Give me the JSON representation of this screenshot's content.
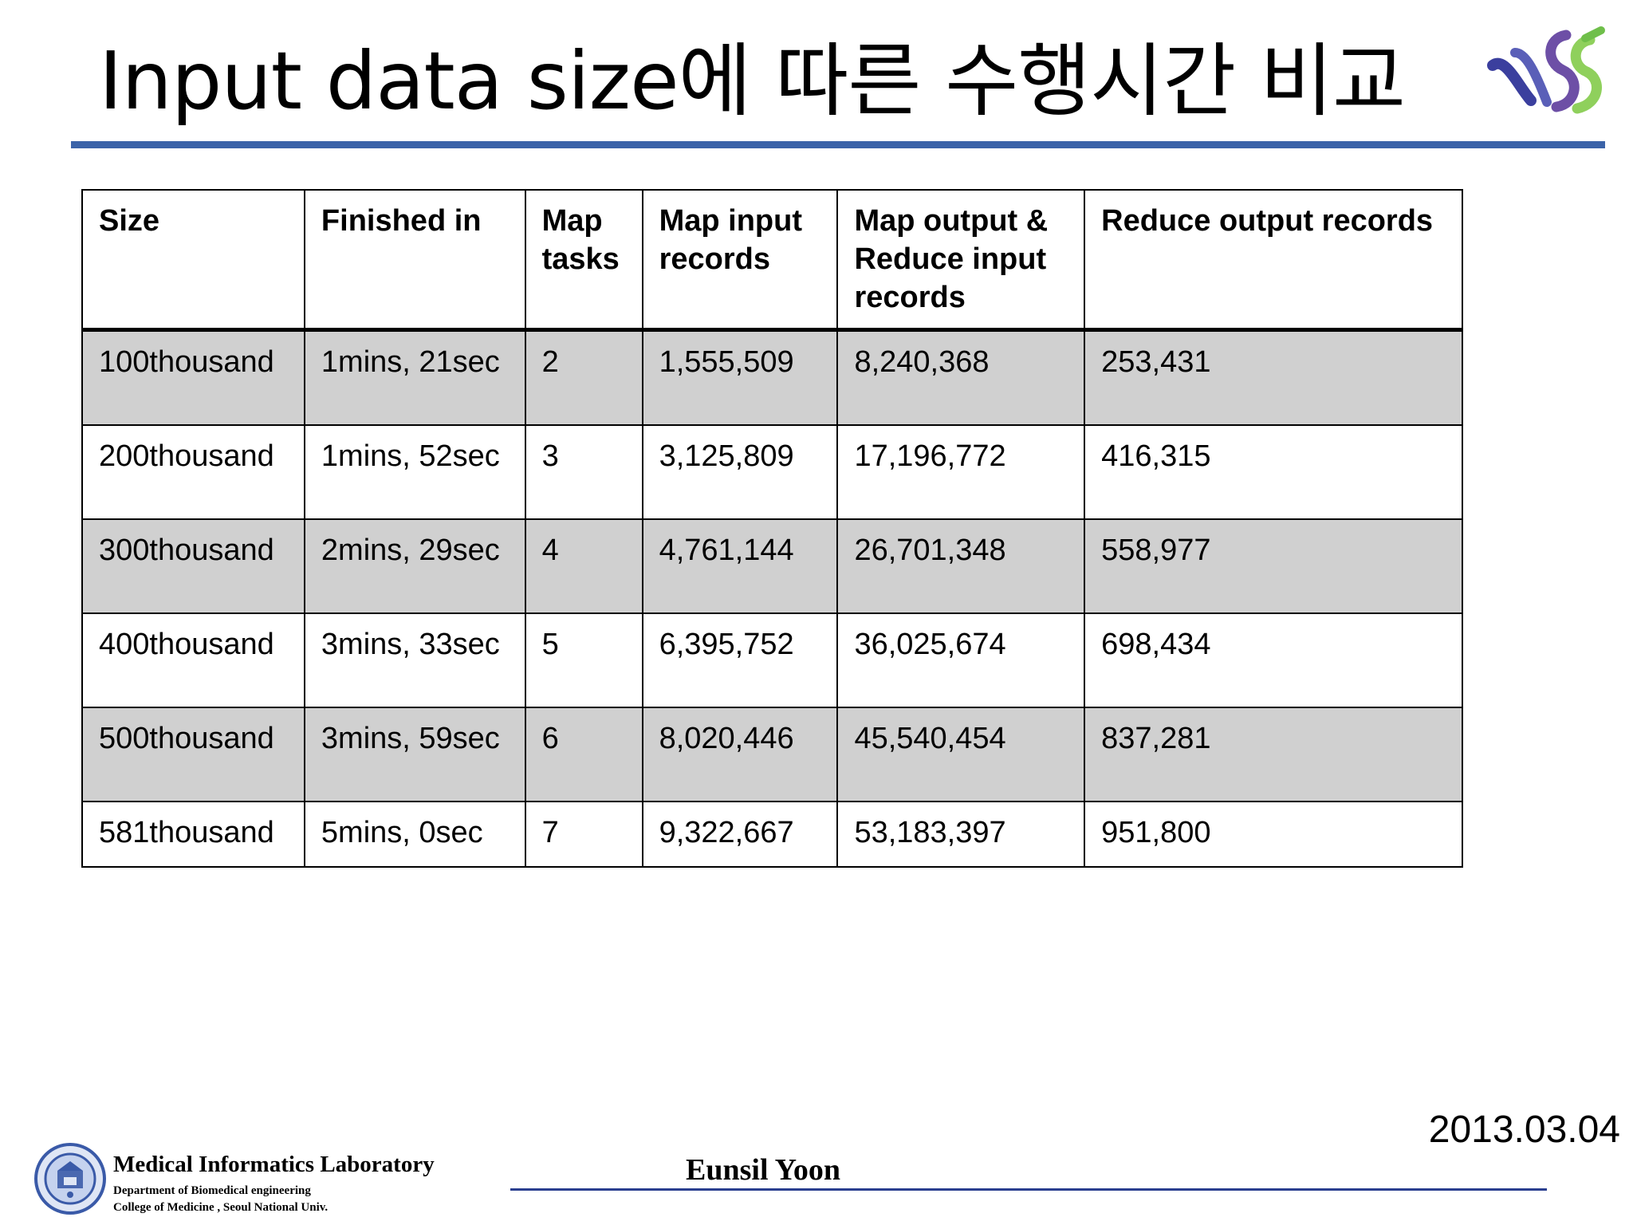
{
  "slide": {
    "title": "Input data size에 따른 수행시간 비교",
    "date": "2013.03.04",
    "author": "Eunsil Yoon"
  },
  "colors": {
    "title_rule": "#3b63a8",
    "shaded_row": "#d0d0d0",
    "footer_rule": "#2a3f8f"
  },
  "table": {
    "headers": {
      "size": "Size",
      "finished": "Finished in",
      "map_tasks": "Map tasks",
      "map_input": "Map input records",
      "map_output": "Map output & Reduce input records",
      "reduce_output": "Reduce output records"
    },
    "rows": [
      {
        "size": "100thousand",
        "finished": "1mins, 21sec",
        "map_tasks": "2",
        "map_input": "1,555,509",
        "map_output": "8,240,368",
        "reduce_output": "253,431"
      },
      {
        "size": "200thousand",
        "finished": "1mins, 52sec",
        "map_tasks": "3",
        "map_input": "3,125,809",
        "map_output": "17,196,772",
        "reduce_output": "416,315"
      },
      {
        "size": "300thousand",
        "finished": "2mins, 29sec",
        "map_tasks": "4",
        "map_input": "4,761,144",
        "map_output": "26,701,348",
        "reduce_output": "558,977"
      },
      {
        "size": "400thousand",
        "finished": "3mins, 33sec",
        "map_tasks": "5",
        "map_input": "6,395,752",
        "map_output": "36,025,674",
        "reduce_output": "698,434"
      },
      {
        "size": "500thousand",
        "finished": "3mins, 59sec",
        "map_tasks": "6",
        "map_input": "8,020,446",
        "map_output": "45,540,454",
        "reduce_output": "837,281"
      },
      {
        "size": "581thousand",
        "finished": "5mins, 0sec",
        "map_tasks": "7",
        "map_input": "9,322,667",
        "map_output": "53,183,397",
        "reduce_output": "951,800"
      }
    ]
  },
  "footer": {
    "lab_name": "Medical  Informatics Laboratory",
    "department": "Department of Biomedical engineering",
    "college": "College of Medicine , Seoul  National  Univ."
  },
  "icons": {
    "logo": "snu-lab-logo-icon",
    "seal": "university-seal-icon"
  }
}
